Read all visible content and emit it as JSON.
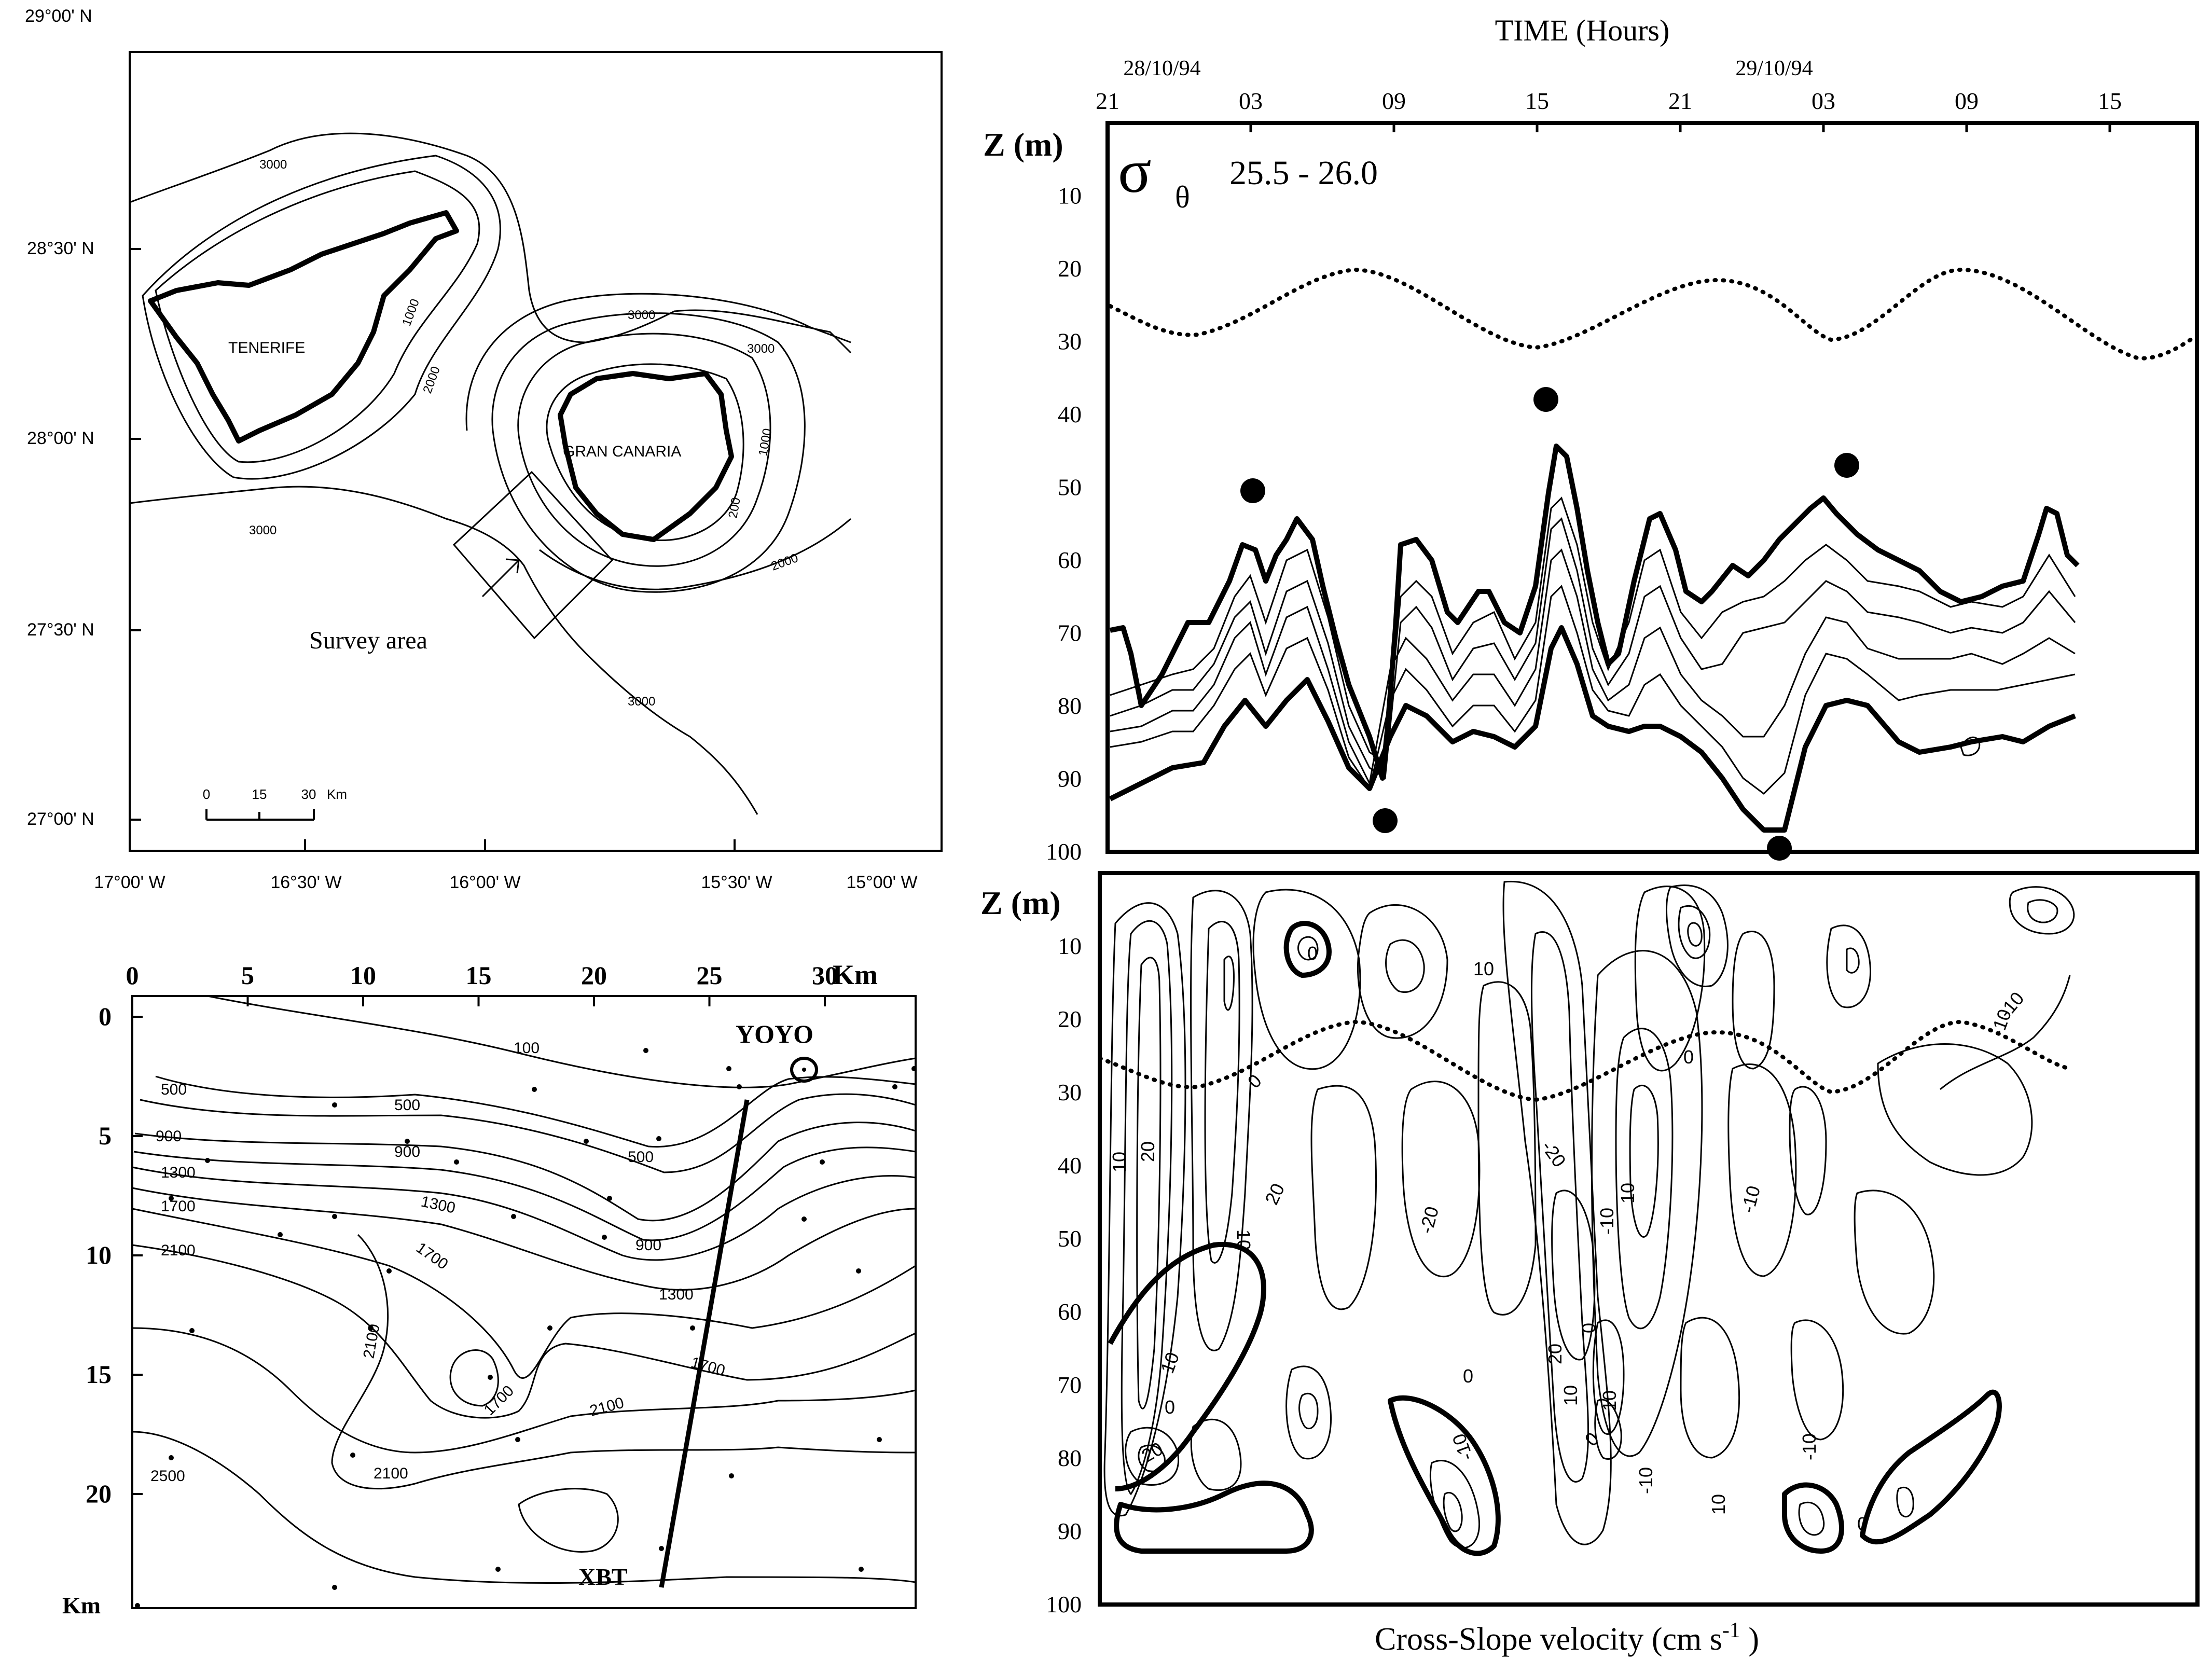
{
  "map": {
    "lat_labels": [
      "29°00' N",
      "28°30' N",
      "28°00' N",
      "27°30' N",
      "27°00' N"
    ],
    "lon_labels": [
      "17°00' W",
      "16°30' W",
      "16°00' W",
      "15°30' W",
      "15°00' W"
    ],
    "islands": [
      "TENERIFE",
      "GRAN  CANARIA"
    ],
    "contours": [
      "3000",
      "1000",
      "2000",
      "3000",
      "200",
      "1000",
      "2000",
      "3000",
      "3000",
      "3000"
    ],
    "survey_label": "Survey area",
    "scale_ticks": [
      "0",
      "15",
      "30"
    ],
    "scale_unit": "Km"
  },
  "survey": {
    "x_ticks": [
      "0",
      "5",
      "10",
      "15",
      "20",
      "25",
      "30"
    ],
    "x_unit": "Km",
    "y_ticks": [
      "0",
      "5",
      "10",
      "15",
      "20"
    ],
    "y_unit": "Km",
    "contours": [
      "100",
      "500",
      "500",
      "900",
      "500",
      "900",
      "1300",
      "1300",
      "1700",
      "900",
      "2100",
      "1700",
      "1300",
      "2100",
      "1700",
      "1700",
      "2100",
      "2100",
      "2500"
    ],
    "yoyo_label": "YOYO",
    "xbt_label": "XBT"
  },
  "sigma_panel": {
    "time_title": "TIME (Hours)",
    "dates": [
      "28/10/94",
      "29/10/94"
    ],
    "time_ticks": [
      "21",
      "03",
      "09",
      "15",
      "21",
      "03",
      "09",
      "15"
    ],
    "z_title": "Z (m)",
    "z_ticks": [
      "10",
      "20",
      "30",
      "40",
      "50",
      "60",
      "70",
      "80",
      "90",
      "100"
    ],
    "sigma_symbol": "σ",
    "sigma_sub": "θ",
    "sigma_range": "25.5 - 26.0"
  },
  "velocity_panel": {
    "z_title": "Z (m)",
    "z_ticks": [
      "10",
      "20",
      "30",
      "40",
      "50",
      "60",
      "70",
      "80",
      "90",
      "100"
    ],
    "contour_labels": [
      "0",
      "10",
      "-10",
      "-20",
      "20",
      "10",
      "0",
      "-10",
      "0",
      "10",
      "20",
      "-20",
      "-10",
      "20",
      "10",
      "0",
      "-10",
      "10",
      "-10",
      "0",
      "10",
      "0",
      "10",
      "20",
      "-10",
      "-10",
      "10",
      "0",
      "0"
    ],
    "caption": "Cross-Slope velocity (cm s",
    "caption_sup": "-1",
    "caption_end": " )"
  }
}
